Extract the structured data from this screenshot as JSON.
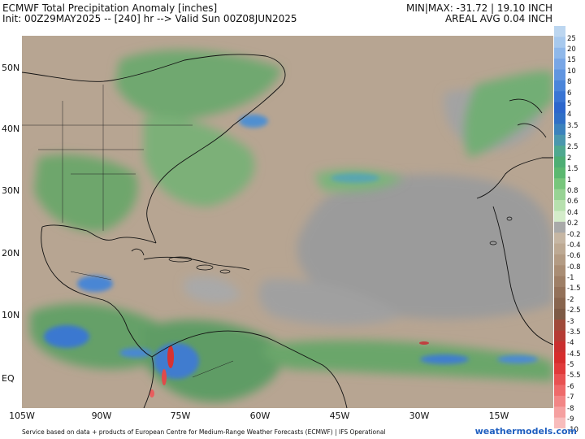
{
  "header": {
    "title": "ECMWF Total Precipitation Anomaly [inches]",
    "init": "Init: 00Z29MAY2025 -- [240] hr --> Valid Sun 00Z08JUN2025",
    "minmax": "MIN|MAX: -31.72 | 19.10 INCH",
    "areal": "AREAL AVG 0.04 INCH"
  },
  "lat_labels": [
    "50N",
    "40N",
    "30N",
    "20N",
    "10N",
    "EQ"
  ],
  "lon_labels": [
    "105W",
    "90W",
    "75W",
    "60W",
    "45W",
    "30W",
    "15W"
  ],
  "colorbar": {
    "labels": [
      "25",
      "20",
      "15",
      "10",
      "8",
      "6",
      "5",
      "4",
      "3.5",
      "3",
      "2.5",
      "2",
      "1.5",
      "1",
      "0.8",
      "0.6",
      "0.4",
      "0.2",
      "-0.2",
      "-0.4",
      "-0.6",
      "-0.8",
      "-1",
      "-1.5",
      "-2",
      "-2.5",
      "-3",
      "-3.5",
      "-4",
      "-4.5",
      "-5",
      "-5.5",
      "-6",
      "-7",
      "-8",
      "-9",
      "-10"
    ],
    "colors": [
      "#bcd6f0",
      "#a7c9ee",
      "#8fb8ea",
      "#78a6e6",
      "#6195e0",
      "#4b85da",
      "#3a75d4",
      "#2c66cc",
      "#2f6fc6",
      "#3b82bc",
      "#4a97ad",
      "#4fa88f",
      "#4eae74",
      "#5cb870",
      "#78c67c",
      "#98d394",
      "#b7e0ae",
      "#d4ecca",
      "#a9a9a9",
      "#c6b6a3",
      "#bda993",
      "#b39b83",
      "#a98d74",
      "#9e7f66",
      "#937159",
      "#88654e",
      "#7d5a45",
      "#a04a3a",
      "#b53b34",
      "#c92f2f",
      "#d62c2c",
      "#e03a3a",
      "#e85252",
      "#ee6a6a",
      "#f28585",
      "#f5a0a0",
      "#f8bcbc"
    ]
  },
  "footer": {
    "source": "Service based on data + products of European Centre for Medium-Range Weather Forecasts (ECMWF) | IFS Operational",
    "brand": "weathermodels.com"
  }
}
